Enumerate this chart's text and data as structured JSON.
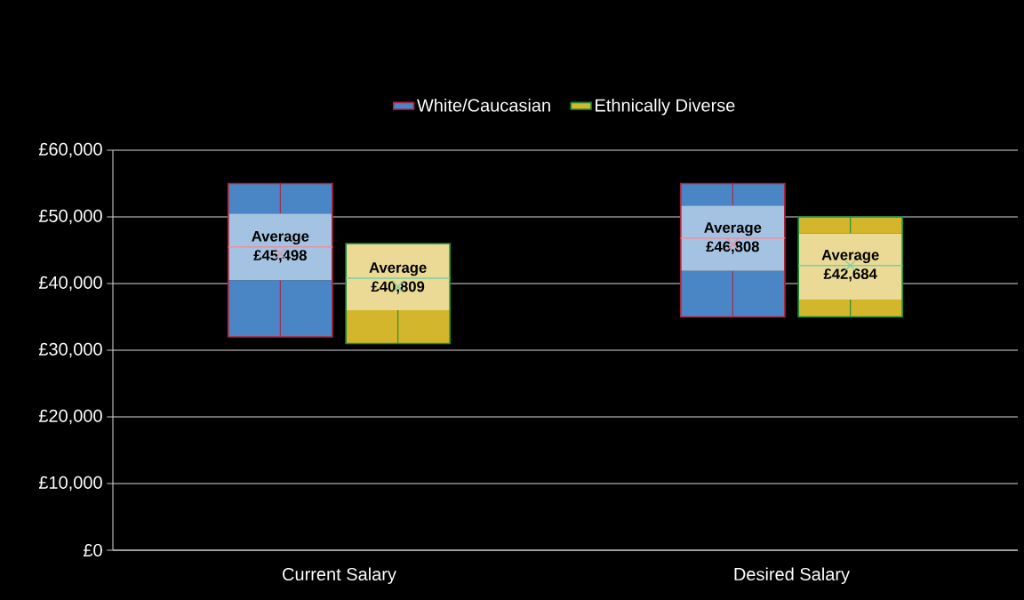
{
  "chart_data": {
    "type": "box",
    "categories": [
      "Current Salary",
      "Desired Salary"
    ],
    "series": [
      {
        "name": "White/Caucasian",
        "color": "#4a86c5",
        "boxes": [
          {
            "low": 32000,
            "q1": 40500,
            "median": 45500,
            "q3": 50500,
            "high": 55000,
            "mean": 44500
          },
          {
            "low": 35000,
            "q1": 41900,
            "median": 46800,
            "q3": 51700,
            "high": 55000,
            "mean": 45900
          }
        ]
      },
      {
        "name": "Ethnically Diverse",
        "color": "#d4b62c",
        "boxes": [
          {
            "low": 31000,
            "q1": 36000,
            "median": 40800,
            "q3": 46000,
            "high": 46000,
            "mean": 39500
          },
          {
            "low": 35000,
            "q1": 37600,
            "median": 42700,
            "q3": 47500,
            "high": 50000,
            "mean": 42700
          }
        ]
      }
    ],
    "ylim": [
      0,
      60000
    ],
    "yticks": [
      {
        "value": 0,
        "label": "£0"
      },
      {
        "value": 10000,
        "label": "£10,000"
      },
      {
        "value": 20000,
        "label": "£20,000"
      },
      {
        "value": 30000,
        "label": "£30,000"
      },
      {
        "value": 40000,
        "label": "£40,000"
      },
      {
        "value": 50000,
        "label": "£50,000"
      },
      {
        "value": 60000,
        "label": "£60,000"
      }
    ],
    "grid": "y",
    "legend": "top",
    "annotations": [
      "Average £45,498",
      "Average £40,809",
      "Average £46,808",
      "Average £42,684"
    ]
  }
}
